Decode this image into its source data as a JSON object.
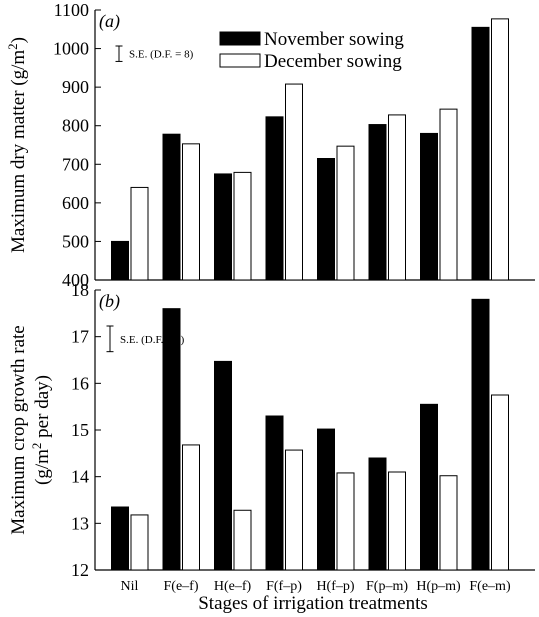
{
  "chart_data": [
    {
      "panel_label": "(a)",
      "type": "bar",
      "ylabel": "Maximum dry matter (g/m²)",
      "ylabel_parts": [
        "Maximum dry matter (g/m",
        "2",
        ")"
      ],
      "ylim": [
        400,
        1100
      ],
      "yticks": [
        400,
        500,
        600,
        700,
        800,
        900,
        1000,
        1100
      ],
      "categories": [
        "Nil",
        "F(e–f)",
        "H(e–f)",
        "F(f–p)",
        "H(f–p)",
        "F(p–m)",
        "H(p–m)",
        "F(e–m)"
      ],
      "series": [
        {
          "name": "November sowing",
          "color": "#000000",
          "values": [
            500,
            778,
            675,
            823,
            715,
            803,
            780,
            1055
          ]
        },
        {
          "name": "December sowing",
          "color": "#ffffff",
          "values": [
            640,
            753,
            679,
            908,
            747,
            828,
            843,
            1077
          ]
        }
      ],
      "se_bar": {
        "label": "S.E. (D.F. = 8)",
        "size": 40
      },
      "legend_position": "top-center",
      "grid": false
    },
    {
      "panel_label": "(b)",
      "type": "bar",
      "ylabel": "Maximum crop growth rate (g/m² per day)",
      "ylabel_line1": "Maximum crop growth rate",
      "ylabel_line2_parts": [
        "(g/m",
        "2",
        " per day)"
      ],
      "ylim": [
        12,
        18
      ],
      "yticks": [
        12,
        13,
        14,
        15,
        16,
        17,
        18
      ],
      "categories": [
        "Nil",
        "F(e–f)",
        "H(e–f)",
        "F(f–p)",
        "H(f–p)",
        "F(p–m)",
        "H(p–m)",
        "F(e–m)"
      ],
      "series": [
        {
          "name": "November sowing",
          "color": "#000000",
          "values": [
            13.35,
            17.6,
            16.47,
            15.3,
            15.02,
            14.4,
            15.55,
            17.8
          ]
        },
        {
          "name": "December sowing",
          "color": "#ffffff",
          "values": [
            13.18,
            14.68,
            13.28,
            14.57,
            14.08,
            14.1,
            14.02,
            15.75
          ]
        }
      ],
      "se_bar": {
        "label": "S.E. (D.F. = 8)",
        "size": 0.55
      },
      "grid": false
    }
  ],
  "xlabel": "Stages of irrigation treatments"
}
